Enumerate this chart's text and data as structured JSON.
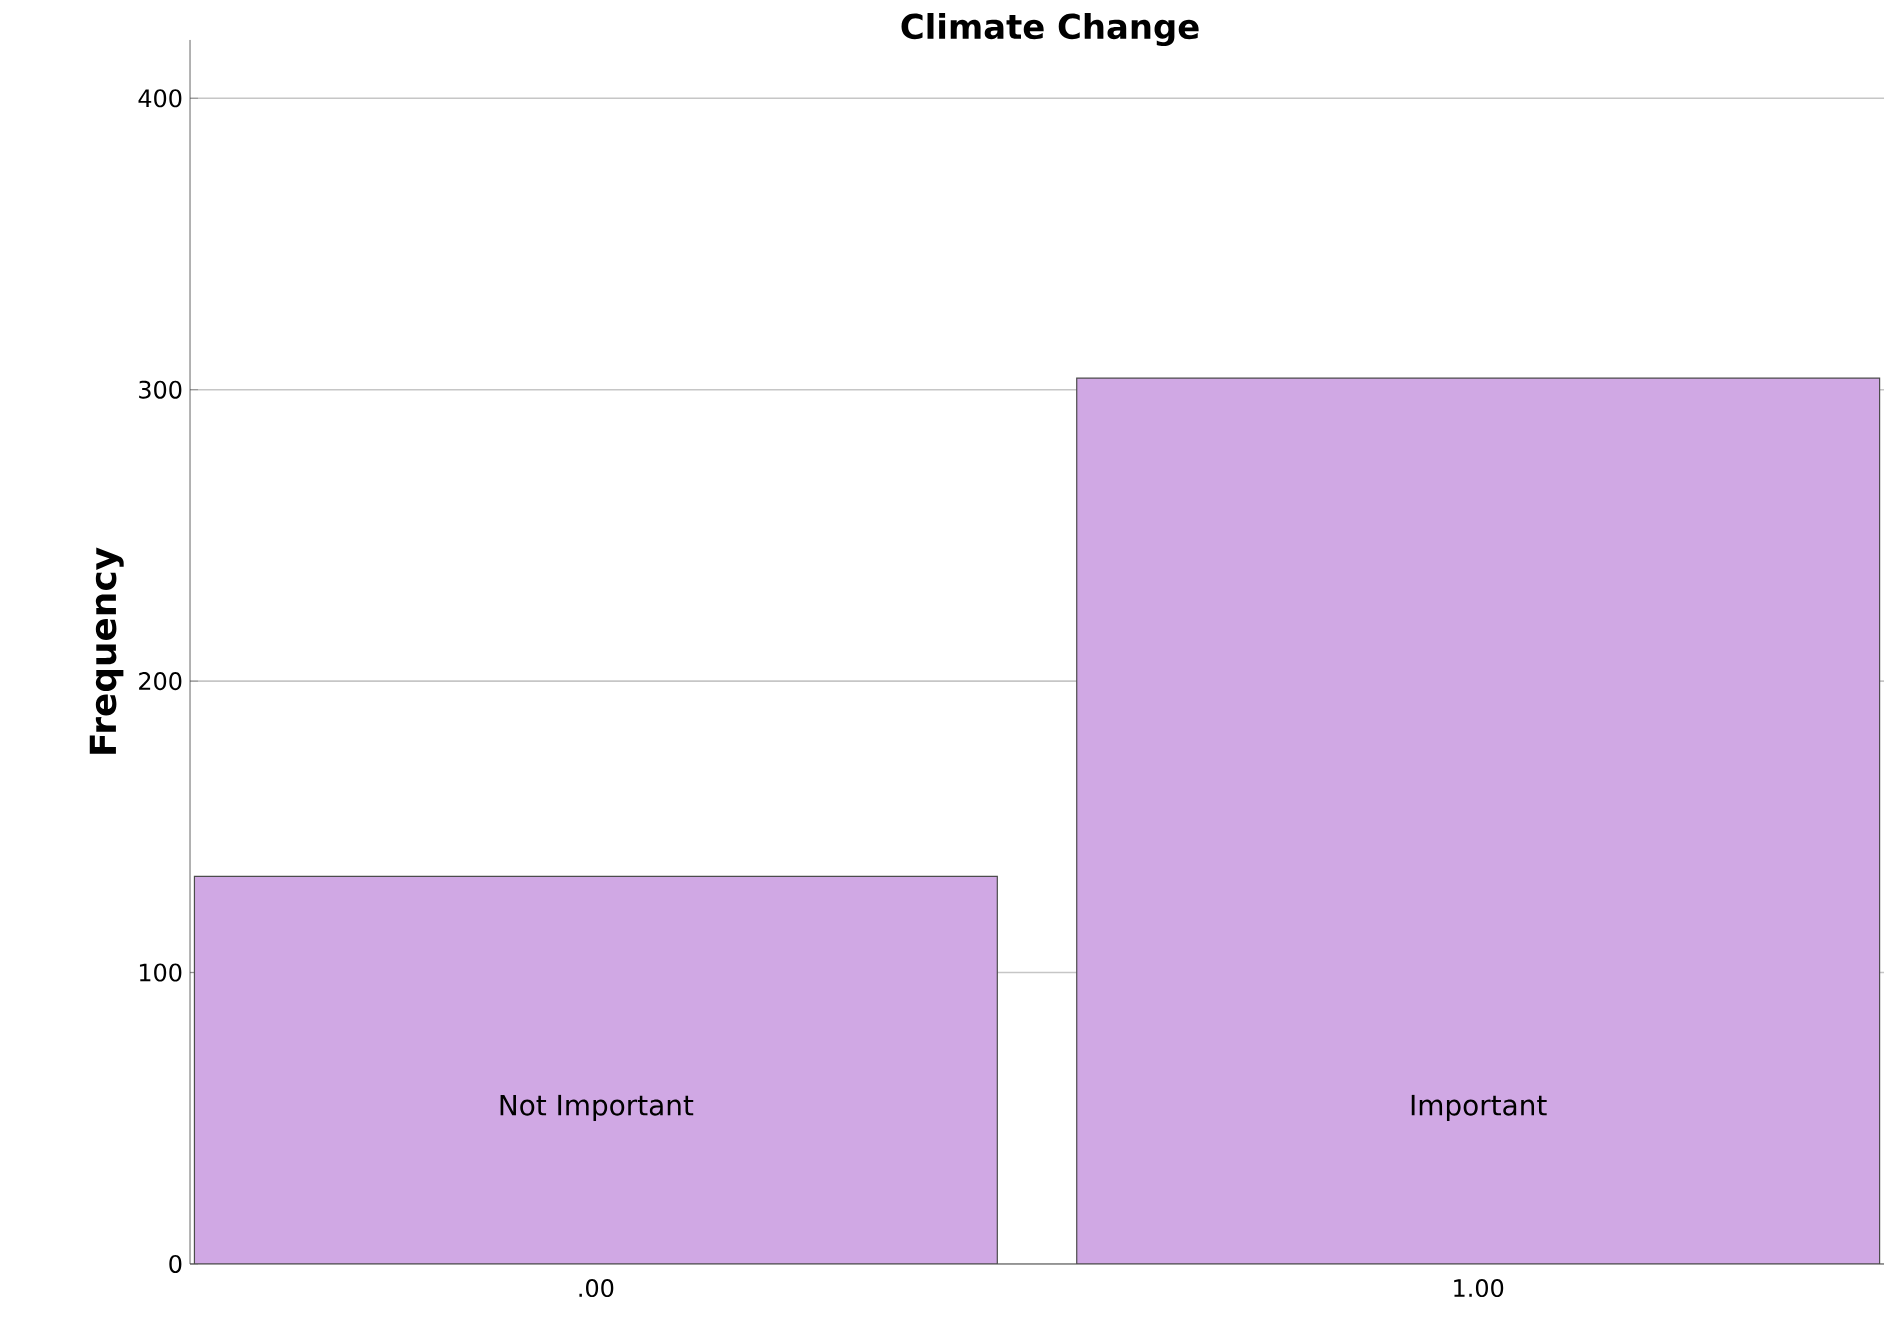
{
  "chart_data": {
    "type": "bar",
    "title": "Climate Change",
    "ylabel": "Frequency",
    "categories": [
      ".00",
      "1.00"
    ],
    "values": [
      133,
      304
    ],
    "color": "#d0a8e4",
    "ylim": [
      0,
      420
    ],
    "yticks": [
      0,
      100,
      200,
      300,
      400
    ],
    "grid": "y",
    "annotations": [
      "Not Important",
      "Important"
    ]
  }
}
